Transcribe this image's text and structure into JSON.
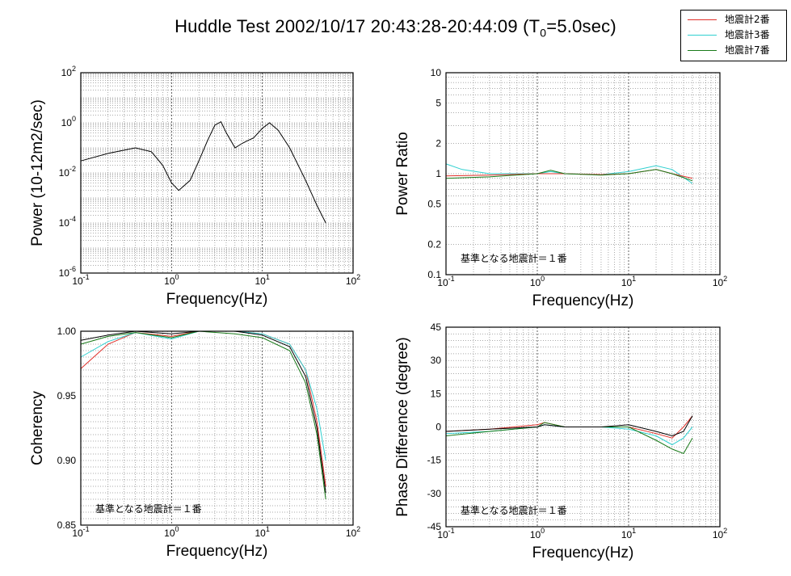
{
  "title": {
    "main": "Huddle Test  2002/10/17  20:43:28-20:44:09 (T",
    "sub": "0",
    "tail": "=5.0sec)"
  },
  "legend": {
    "items": [
      {
        "label": "地震計2番",
        "color": "#e0302a"
      },
      {
        "label": "地震計3番",
        "color": "#2fd0d0"
      },
      {
        "label": "地震計7番",
        "color": "#1a7a1a"
      }
    ]
  },
  "colors": {
    "series_black": "#000000",
    "grid": "#444444"
  },
  "chart_data": [
    {
      "type": "line",
      "xscale": "log",
      "yscale": "log",
      "xlabel": "Frequency(Hz)",
      "ylabel": "Power (10-12m2/sec)",
      "xlim": [
        0.1,
        100
      ],
      "ylim": [
        1e-06,
        100
      ],
      "x_ticks": [
        "10-1",
        "100",
        "101",
        "102"
      ],
      "y_ticks": [
        "10-6",
        "10-4",
        "10-2",
        "100",
        "102"
      ],
      "grid": true,
      "annotation": "",
      "series": [
        {
          "x": [
            0.1,
            0.2,
            0.4,
            0.6,
            0.8,
            1.0,
            1.2,
            1.6,
            2.0,
            2.5,
            3.0,
            3.5,
            4.0,
            5.0,
            6.0,
            7.0,
            8.0,
            10.0,
            12.0,
            15.0,
            20.0,
            30.0,
            40.0,
            50.0
          ],
          "y": [
            0.03,
            0.06,
            0.1,
            0.07,
            0.02,
            0.004,
            0.002,
            0.005,
            0.03,
            0.2,
            0.8,
            1.1,
            0.4,
            0.1,
            0.15,
            0.2,
            0.25,
            0.6,
            1.0,
            0.5,
            0.1,
            0.005,
            0.0005,
            0.0001
          ]
        }
      ]
    },
    {
      "type": "line",
      "xscale": "log",
      "yscale": "log",
      "xlabel": "Frequency(Hz)",
      "ylabel": "Power Ratio",
      "xlim": [
        0.1,
        100
      ],
      "ylim": [
        0.1,
        10
      ],
      "x_ticks": [
        "10-1",
        "100",
        "101",
        "102"
      ],
      "y_ticks": [
        "0.1",
        "0.2",
        "0.5",
        "1",
        "2",
        "5",
        "10"
      ],
      "grid": true,
      "annotation": "基準となる地震計＝１番",
      "series": [
        {
          "x": [
            0.1,
            0.15,
            0.3,
            1.0,
            1.4,
            2.0,
            5.0,
            10.0,
            20.0,
            30.0,
            50.0
          ],
          "y": [
            1.25,
            1.1,
            1.0,
            1.0,
            1.05,
            1.0,
            0.98,
            1.05,
            1.2,
            1.1,
            0.8
          ]
        },
        {
          "x": [
            0.1,
            0.3,
            1.0,
            2.0,
            5.0,
            10.0,
            20.0,
            30.0,
            50.0
          ],
          "y": [
            0.95,
            0.97,
            1.0,
            1.0,
            0.98,
            1.0,
            1.1,
            1.0,
            0.9
          ]
        },
        {
          "x": [
            0.1,
            0.3,
            1.0,
            1.4,
            2.0,
            5.0,
            10.0,
            20.0,
            30.0,
            50.0
          ],
          "y": [
            0.9,
            0.93,
            1.0,
            1.08,
            1.0,
            0.97,
            1.0,
            1.1,
            1.0,
            0.85
          ]
        }
      ]
    },
    {
      "type": "line",
      "xscale": "log",
      "yscale": "linear",
      "xlabel": "Frequency(Hz)",
      "ylabel": "Coherency",
      "xlim": [
        0.1,
        100
      ],
      "ylim": [
        0.85,
        1.0
      ],
      "x_ticks": [
        "10-1",
        "100",
        "101",
        "102"
      ],
      "y_ticks": [
        "0.85",
        "0.90",
        "0.95",
        "1.00"
      ],
      "grid": true,
      "annotation": "基準となる地震計＝１番",
      "series": [
        {
          "x": [
            0.1,
            0.2,
            0.4,
            1.0,
            2.0,
            5.0,
            10.0,
            20.0,
            30.0,
            40.0,
            50.0
          ],
          "y": [
            0.971,
            0.99,
            0.999,
            0.996,
            1.0,
            1.0,
            0.998,
            0.99,
            0.97,
            0.93,
            0.88
          ]
        },
        {
          "x": [
            0.1,
            0.2,
            0.4,
            1.0,
            2.0,
            5.0,
            10.0,
            20.0,
            30.0,
            40.0,
            50.0
          ],
          "y": [
            0.98,
            0.992,
            0.999,
            0.994,
            1.0,
            1.0,
            0.998,
            0.99,
            0.97,
            0.94,
            0.9
          ]
        },
        {
          "x": [
            0.1,
            0.2,
            0.4,
            1.0,
            2.0,
            5.0,
            10.0,
            20.0,
            30.0,
            40.0,
            50.0
          ],
          "y": [
            0.99,
            0.996,
            0.999,
            0.995,
            1.0,
            0.998,
            0.995,
            0.985,
            0.96,
            0.92,
            0.87
          ]
        },
        {
          "x": [
            0.1,
            0.2,
            0.4,
            1.0,
            2.0,
            5.0,
            10.0,
            20.0,
            30.0,
            40.0,
            50.0
          ],
          "y": [
            0.993,
            0.997,
            1.0,
            0.998,
            1.0,
            1.0,
            0.997,
            0.988,
            0.965,
            0.925,
            0.875
          ]
        }
      ]
    },
    {
      "type": "line",
      "xscale": "log",
      "yscale": "linear",
      "xlabel": "Frequency(Hz)",
      "ylabel": "Phase Difference (degree)",
      "xlim": [
        0.1,
        100
      ],
      "ylim": [
        -45,
        45
      ],
      "x_ticks": [
        "10-1",
        "100",
        "101",
        "102"
      ],
      "y_ticks": [
        "-45",
        "-30",
        "-15",
        "0",
        "15",
        "30",
        "45"
      ],
      "grid": true,
      "annotation": "基準となる地震計＝１番",
      "series": [
        {
          "x": [
            0.1,
            0.3,
            1.0,
            1.2,
            2.0,
            5.0,
            10.0,
            20.0,
            30.0,
            40.0,
            50.0
          ],
          "y": [
            -2,
            -1,
            1,
            2,
            0,
            0,
            0,
            -3,
            -5,
            0,
            5
          ]
        },
        {
          "x": [
            0.1,
            0.3,
            1.0,
            1.2,
            2.0,
            5.0,
            10.0,
            20.0,
            30.0,
            40.0,
            50.0
          ],
          "y": [
            -3,
            -2,
            0,
            1,
            0,
            0,
            -1,
            -4,
            -8,
            -5,
            0
          ]
        },
        {
          "x": [
            0.1,
            0.3,
            1.0,
            1.2,
            2.0,
            5.0,
            10.0,
            20.0,
            30.0,
            40.0,
            50.0
          ],
          "y": [
            -4,
            -2,
            0,
            2,
            0,
            0,
            0,
            -6,
            -10,
            -12,
            -5
          ]
        },
        {
          "x": [
            0.1,
            0.3,
            1.0,
            1.2,
            2.0,
            5.0,
            10.0,
            20.0,
            30.0,
            40.0,
            50.0
          ],
          "y": [
            -2,
            -1,
            0,
            1,
            0,
            0,
            1,
            -2,
            -4,
            -2,
            5
          ]
        }
      ]
    }
  ]
}
